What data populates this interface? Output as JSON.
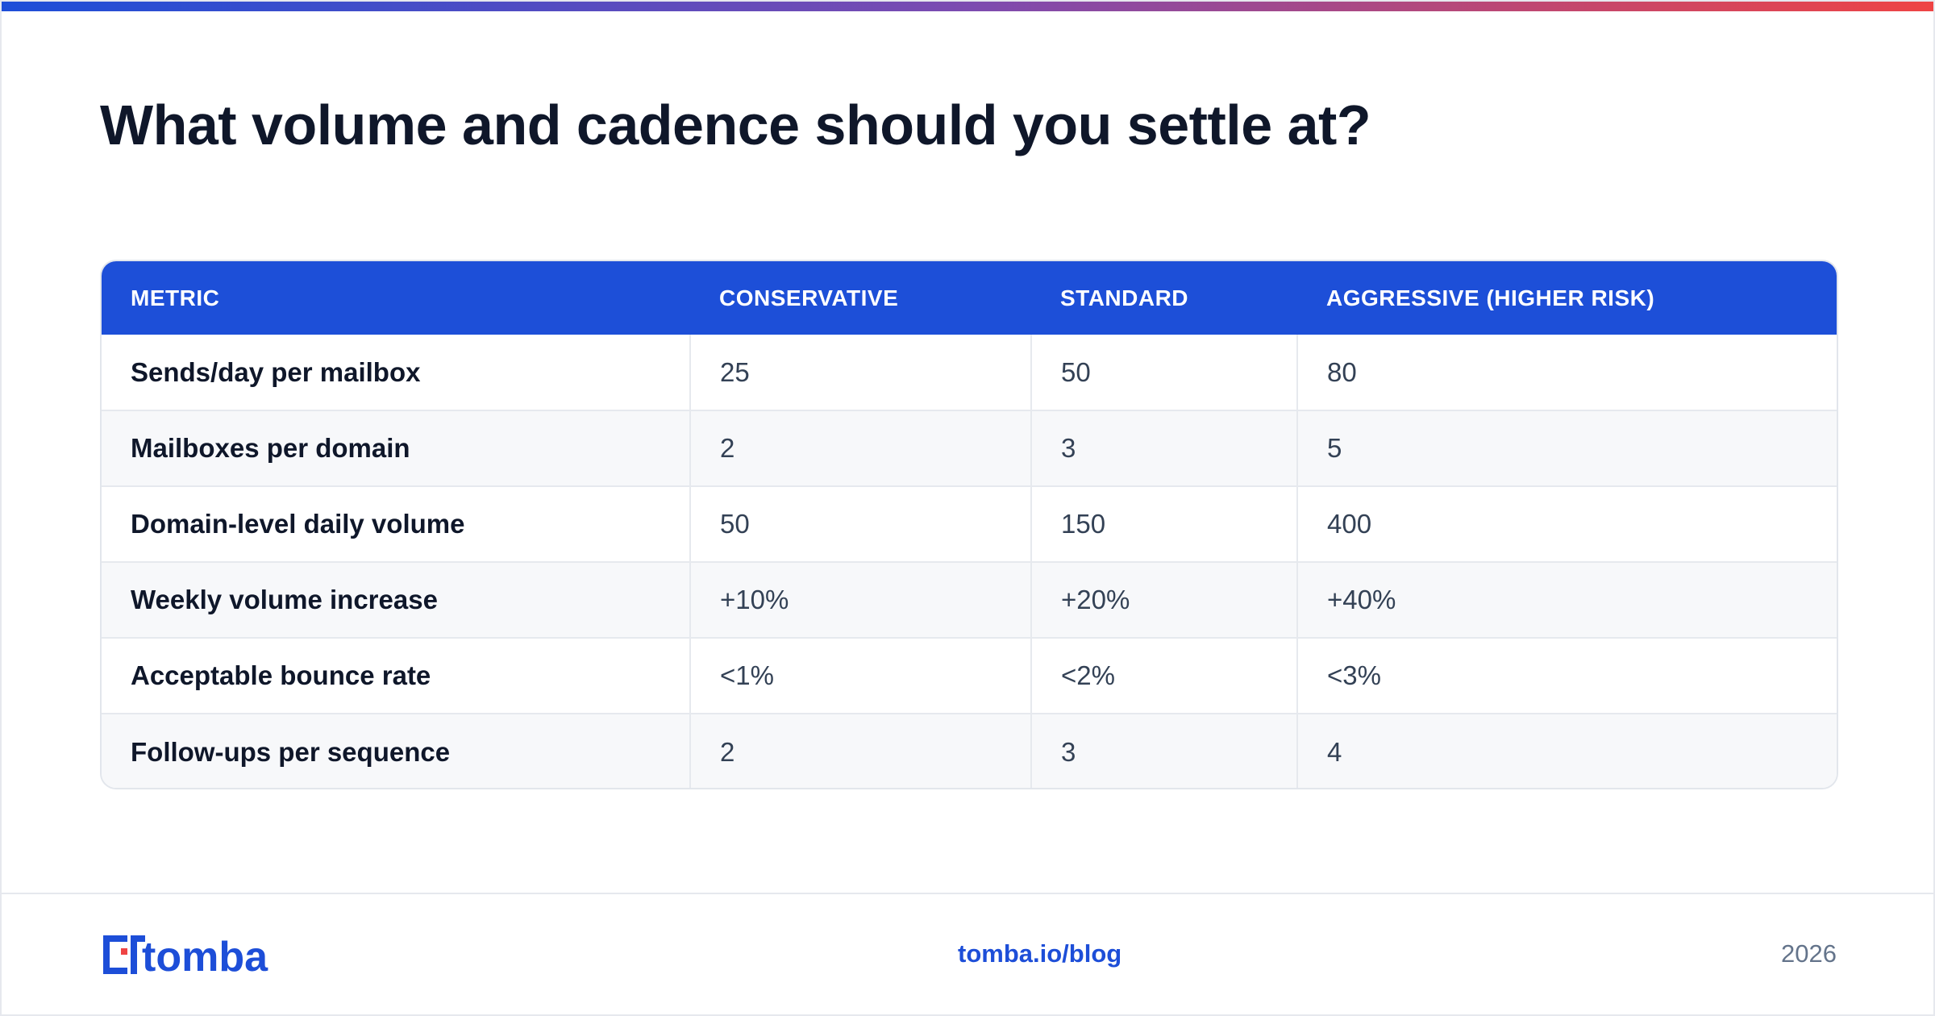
{
  "brand": {
    "accent": "#1d4ed8",
    "gradient": [
      "#1d4ed8",
      "#7c4bb0",
      "#ef4444"
    ],
    "logo_text": "tomba",
    "logo_icon": "tomba-logo-icon"
  },
  "title": "What volume and cadence should you settle at?",
  "table": {
    "columns": [
      "METRIC",
      "CONSERVATIVE",
      "STANDARD",
      "AGGRESSIVE (HIGHER RISK)"
    ],
    "rows": [
      [
        "Sends/day per mailbox",
        "25",
        "50",
        "80"
      ],
      [
        "Mailboxes per domain",
        "2",
        "3",
        "5"
      ],
      [
        "Domain-level daily volume",
        "50",
        "150",
        "400"
      ],
      [
        "Weekly volume increase",
        "+10%",
        "+20%",
        "+40%"
      ],
      [
        "Acceptable bounce rate",
        "<1%",
        "<2%",
        "<3%"
      ],
      [
        "Follow-ups per sequence",
        "2",
        "3",
        "4"
      ]
    ]
  },
  "footer": {
    "url": "tomba.io/blog",
    "year": "2026"
  }
}
